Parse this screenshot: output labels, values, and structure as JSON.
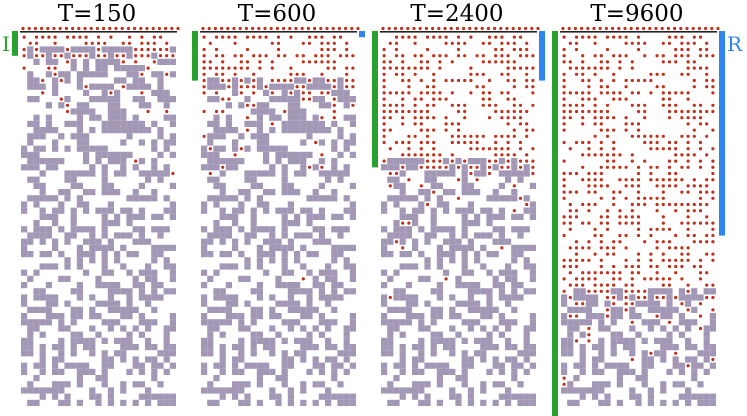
{
  "panels": [
    {
      "title": "T=150",
      "green_depth": 4,
      "blue_depth": 0,
      "filled_rows": 4
    },
    {
      "title": "T=600",
      "green_depth": 8,
      "blue_depth": 1,
      "filled_rows": 9
    },
    {
      "title": "T=2400",
      "green_depth": 22,
      "blue_depth": 8,
      "filled_rows": 22
    },
    {
      "title": "T=9600",
      "green_depth": 63,
      "blue_depth": 33,
      "filled_rows": 43
    }
  ],
  "labels": {
    "left": "I",
    "right": "R"
  },
  "colors": {
    "obstacle": "#a397b6",
    "particle": "#c0301a",
    "surface_line": "#222222",
    "green_bar": "#2aa12e",
    "blue_bar": "#2f86f0",
    "label_left": "#2aa12e",
    "label_right": "#2f86f0",
    "background": "#ffffff"
  }
}
